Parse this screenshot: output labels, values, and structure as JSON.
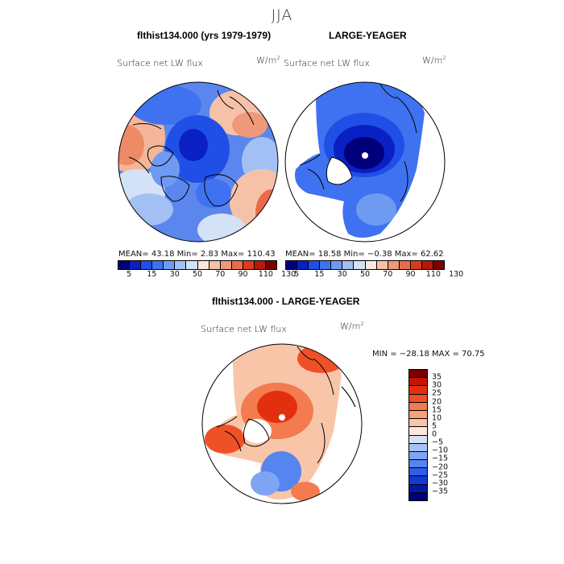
{
  "season": "JJA",
  "panels": [
    {
      "title": "flthist134.000 (yrs 1979-1979)",
      "field": "Surface net LW flux",
      "units": "W/m",
      "units_sup": "2",
      "stats": "MEAN=   43.18  Min=     2.83   Max=  110.43"
    },
    {
      "title": "LARGE-YEAGER",
      "field": "Surface net LW flux",
      "units": "W/m",
      "units_sup": "2",
      "stats": "MEAN=   18.58  Min=   −0.38   Max=   62.62"
    },
    {
      "title": "flthist134.000 - LARGE-YEAGER",
      "field": "Surface net LW flux",
      "units": "W/m",
      "units_sup": "2",
      "stats": "MIN = −28.18  MAX =   70.75"
    }
  ],
  "colorbar_top": {
    "colors": [
      "#00007a",
      "#0a1fc4",
      "#1f4fe6",
      "#3f72f0",
      "#6f9af2",
      "#a3c0f4",
      "#d4e2f7",
      "#fbe7dc",
      "#f6c2a7",
      "#f0987a",
      "#ea6a4b",
      "#dd3a1c",
      "#b7190a",
      "#7a0000"
    ],
    "ticks": [
      "5",
      "15",
      "30",
      "50",
      "70",
      "90",
      "110",
      "130"
    ]
  },
  "colorbar_diff": {
    "colors": [
      "#7a0000",
      "#c21505",
      "#e2300f",
      "#ee5127",
      "#f37b4f",
      "#f6a07c",
      "#f8c5a9",
      "#fbe7dc",
      "#d4e2f7",
      "#a7c3f4",
      "#7fa4f2",
      "#5685ef",
      "#2f5ee8",
      "#1438d2",
      "#0616a8",
      "#00007a"
    ],
    "ticks": [
      "35",
      "30",
      "25",
      "20",
      "15",
      "10",
      "5",
      "0",
      "−5",
      "−10",
      "−15",
      "−20",
      "−25",
      "−30",
      "−35"
    ]
  }
}
